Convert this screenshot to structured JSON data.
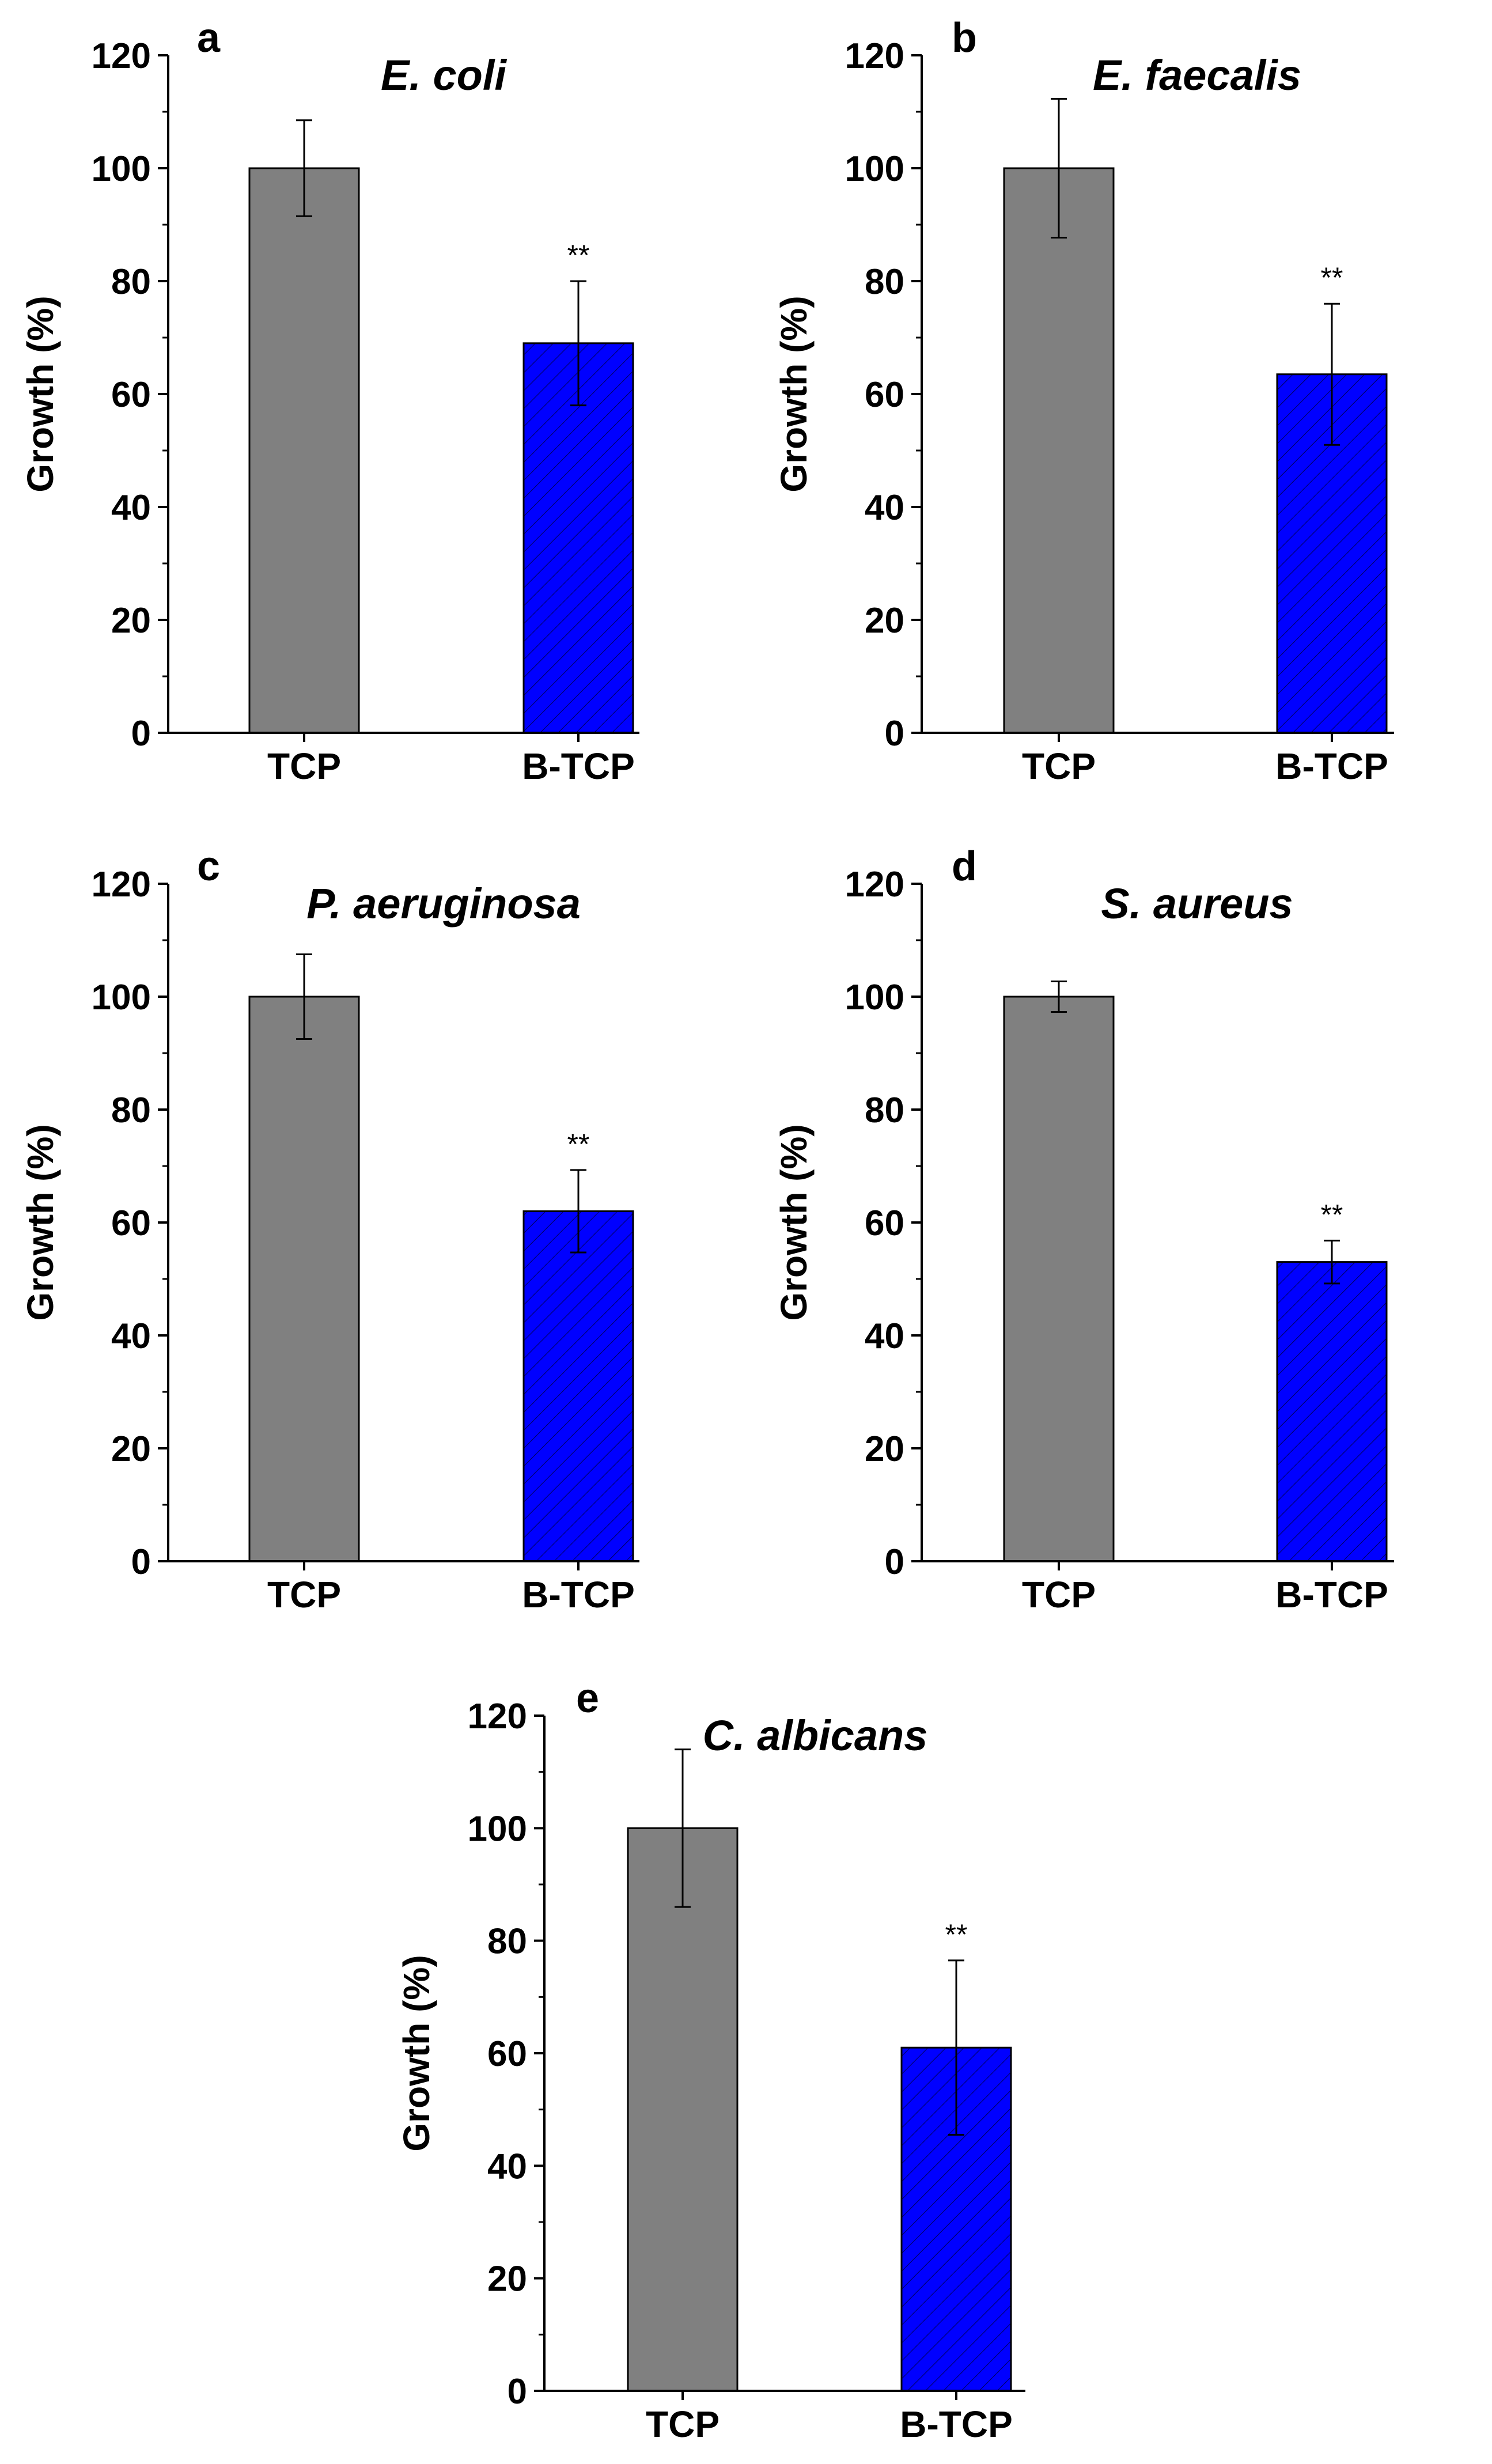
{
  "chart_data": [
    {
      "type": "bar",
      "panel_label": "a",
      "title": "E. coli",
      "ylabel": "Growth (%)",
      "xlabel": "",
      "categories": [
        "TCP",
        "B-TCP"
      ],
      "values": [
        100,
        69
      ],
      "errors": [
        8.5,
        11
      ],
      "significance": [
        "",
        "**"
      ],
      "ylim": [
        0,
        120
      ],
      "yticks": [
        "0",
        "20",
        "40",
        "60",
        "80",
        "100",
        "120"
      ],
      "ytick_values": [
        0,
        20,
        40,
        60,
        80,
        100,
        120
      ],
      "colors": [
        "#808080",
        "#0000ff"
      ],
      "hatch": [
        false,
        true
      ],
      "grid": false
    },
    {
      "type": "bar",
      "panel_label": "b",
      "title": "E. faecalis",
      "ylabel": "Growth (%)",
      "xlabel": "",
      "categories": [
        "TCP",
        "B-TCP"
      ],
      "values": [
        100,
        63.5
      ],
      "errors": [
        12.3,
        12.5
      ],
      "significance": [
        "",
        "**"
      ],
      "ylim": [
        0,
        120
      ],
      "yticks": [
        "0",
        "20",
        "40",
        "60",
        "80",
        "100",
        "120"
      ],
      "ytick_values": [
        0,
        20,
        40,
        60,
        80,
        100,
        120
      ],
      "colors": [
        "#808080",
        "#0000ff"
      ],
      "hatch": [
        false,
        true
      ],
      "grid": false
    },
    {
      "type": "bar",
      "panel_label": "c",
      "title": "P. aeruginosa",
      "ylabel": "Growth (%)",
      "xlabel": "",
      "categories": [
        "TCP",
        "B-TCP"
      ],
      "values": [
        100,
        62
      ],
      "errors": [
        7.5,
        7.3
      ],
      "significance": [
        "",
        "**"
      ],
      "ylim": [
        0,
        120
      ],
      "yticks": [
        "0",
        "20",
        "40",
        "60",
        "80",
        "100",
        "120"
      ],
      "ytick_values": [
        0,
        20,
        40,
        60,
        80,
        100,
        120
      ],
      "colors": [
        "#808080",
        "#0000ff"
      ],
      "hatch": [
        false,
        true
      ],
      "grid": false
    },
    {
      "type": "bar",
      "panel_label": "d",
      "title": "S. aureus",
      "ylabel": "Growth (%)",
      "xlabel": "",
      "categories": [
        "TCP",
        "B-TCP"
      ],
      "values": [
        100,
        53
      ],
      "errors": [
        2.7,
        3.8
      ],
      "significance": [
        "",
        "**"
      ],
      "ylim": [
        0,
        120
      ],
      "yticks": [
        "0",
        "20",
        "40",
        "60",
        "80",
        "100",
        "120"
      ],
      "ytick_values": [
        0,
        20,
        40,
        60,
        80,
        100,
        120
      ],
      "colors": [
        "#808080",
        "#0000ff"
      ],
      "hatch": [
        false,
        true
      ],
      "grid": false
    },
    {
      "type": "bar",
      "panel_label": "e",
      "title": "C. albicans",
      "ylabel": "Growth (%)",
      "xlabel": "",
      "categories": [
        "TCP",
        "B-TCP"
      ],
      "values": [
        100,
        61
      ],
      "errors": [
        14,
        15.5
      ],
      "significance": [
        "",
        "**"
      ],
      "ylim": [
        0,
        120
      ],
      "yticks": [
        "0",
        "20",
        "40",
        "60",
        "80",
        "100",
        "120"
      ],
      "ytick_values": [
        0,
        20,
        40,
        60,
        80,
        100,
        120
      ],
      "colors": [
        "#808080",
        "#0000ff"
      ],
      "hatch": [
        false,
        true
      ],
      "grid": false
    }
  ]
}
